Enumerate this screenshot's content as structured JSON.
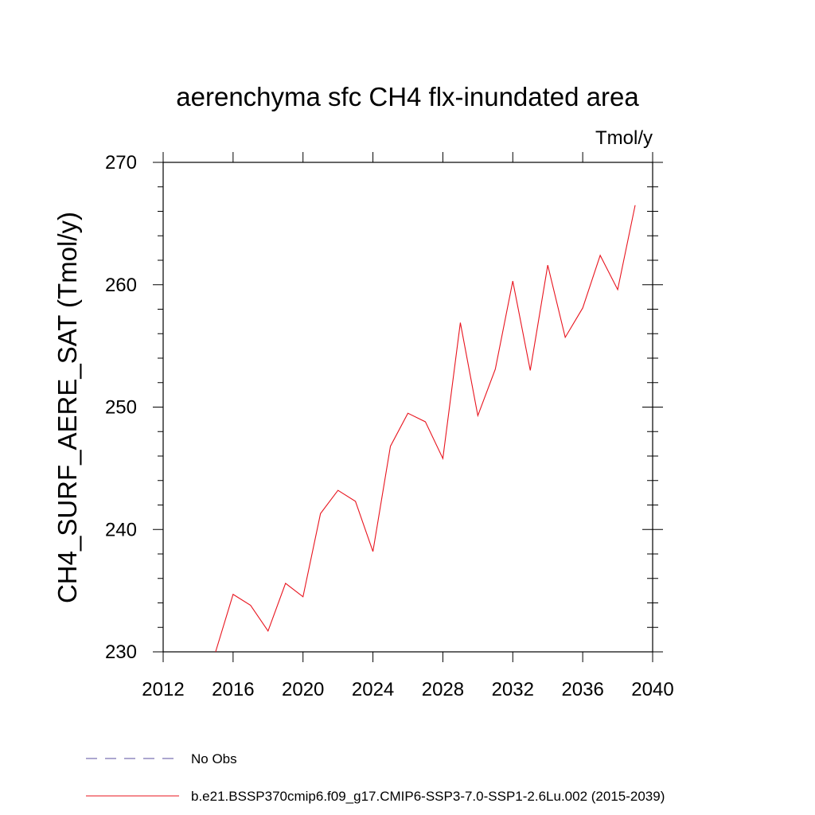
{
  "chart_data": {
    "type": "line",
    "title": "aerenchyma sfc CH4 flx-inundated area",
    "units_label": "Tmol/y",
    "ylabel": "CH4_SURF_AERE_SAT  (Tmol/y)",
    "xlabel": "",
    "xlim": [
      2012,
      2040
    ],
    "ylim": [
      230,
      270
    ],
    "x_ticks": [
      2012,
      2016,
      2020,
      2024,
      2028,
      2032,
      2036,
      2040
    ],
    "y_ticks": [
      230,
      240,
      250,
      260,
      270
    ],
    "grid": false,
    "legend_position": "bottom",
    "legend": [
      {
        "label": "No Obs",
        "color": "#5a4fa0",
        "style": "dashed"
      },
      {
        "label": "b.e21.BSSP370cmip6.f09_g17.CMIP6-SSP3-7.0-SSP1-2.6Lu.002 (2015-2039)",
        "color": "#e8141e",
        "style": "solid"
      }
    ],
    "series": [
      {
        "name": "b.e21.BSSP370cmip6.f09_g17.CMIP6-SSP3-7.0-SSP1-2.6Lu.002 (2015-2039)",
        "color": "#e8141e",
        "x": [
          2015,
          2016,
          2017,
          2018,
          2019,
          2020,
          2021,
          2022,
          2023,
          2024,
          2025,
          2026,
          2027,
          2028,
          2029,
          2030,
          2031,
          2032,
          2033,
          2034,
          2035,
          2036,
          2037,
          2038,
          2039
        ],
        "values": [
          230.0,
          234.7,
          233.8,
          231.7,
          235.6,
          234.5,
          241.3,
          243.2,
          242.3,
          238.2,
          246.8,
          249.5,
          248.8,
          245.8,
          256.9,
          249.3,
          253.1,
          260.3,
          253.0,
          261.6,
          255.7,
          258.1,
          262.4,
          259.6,
          266.5
        ]
      }
    ]
  }
}
